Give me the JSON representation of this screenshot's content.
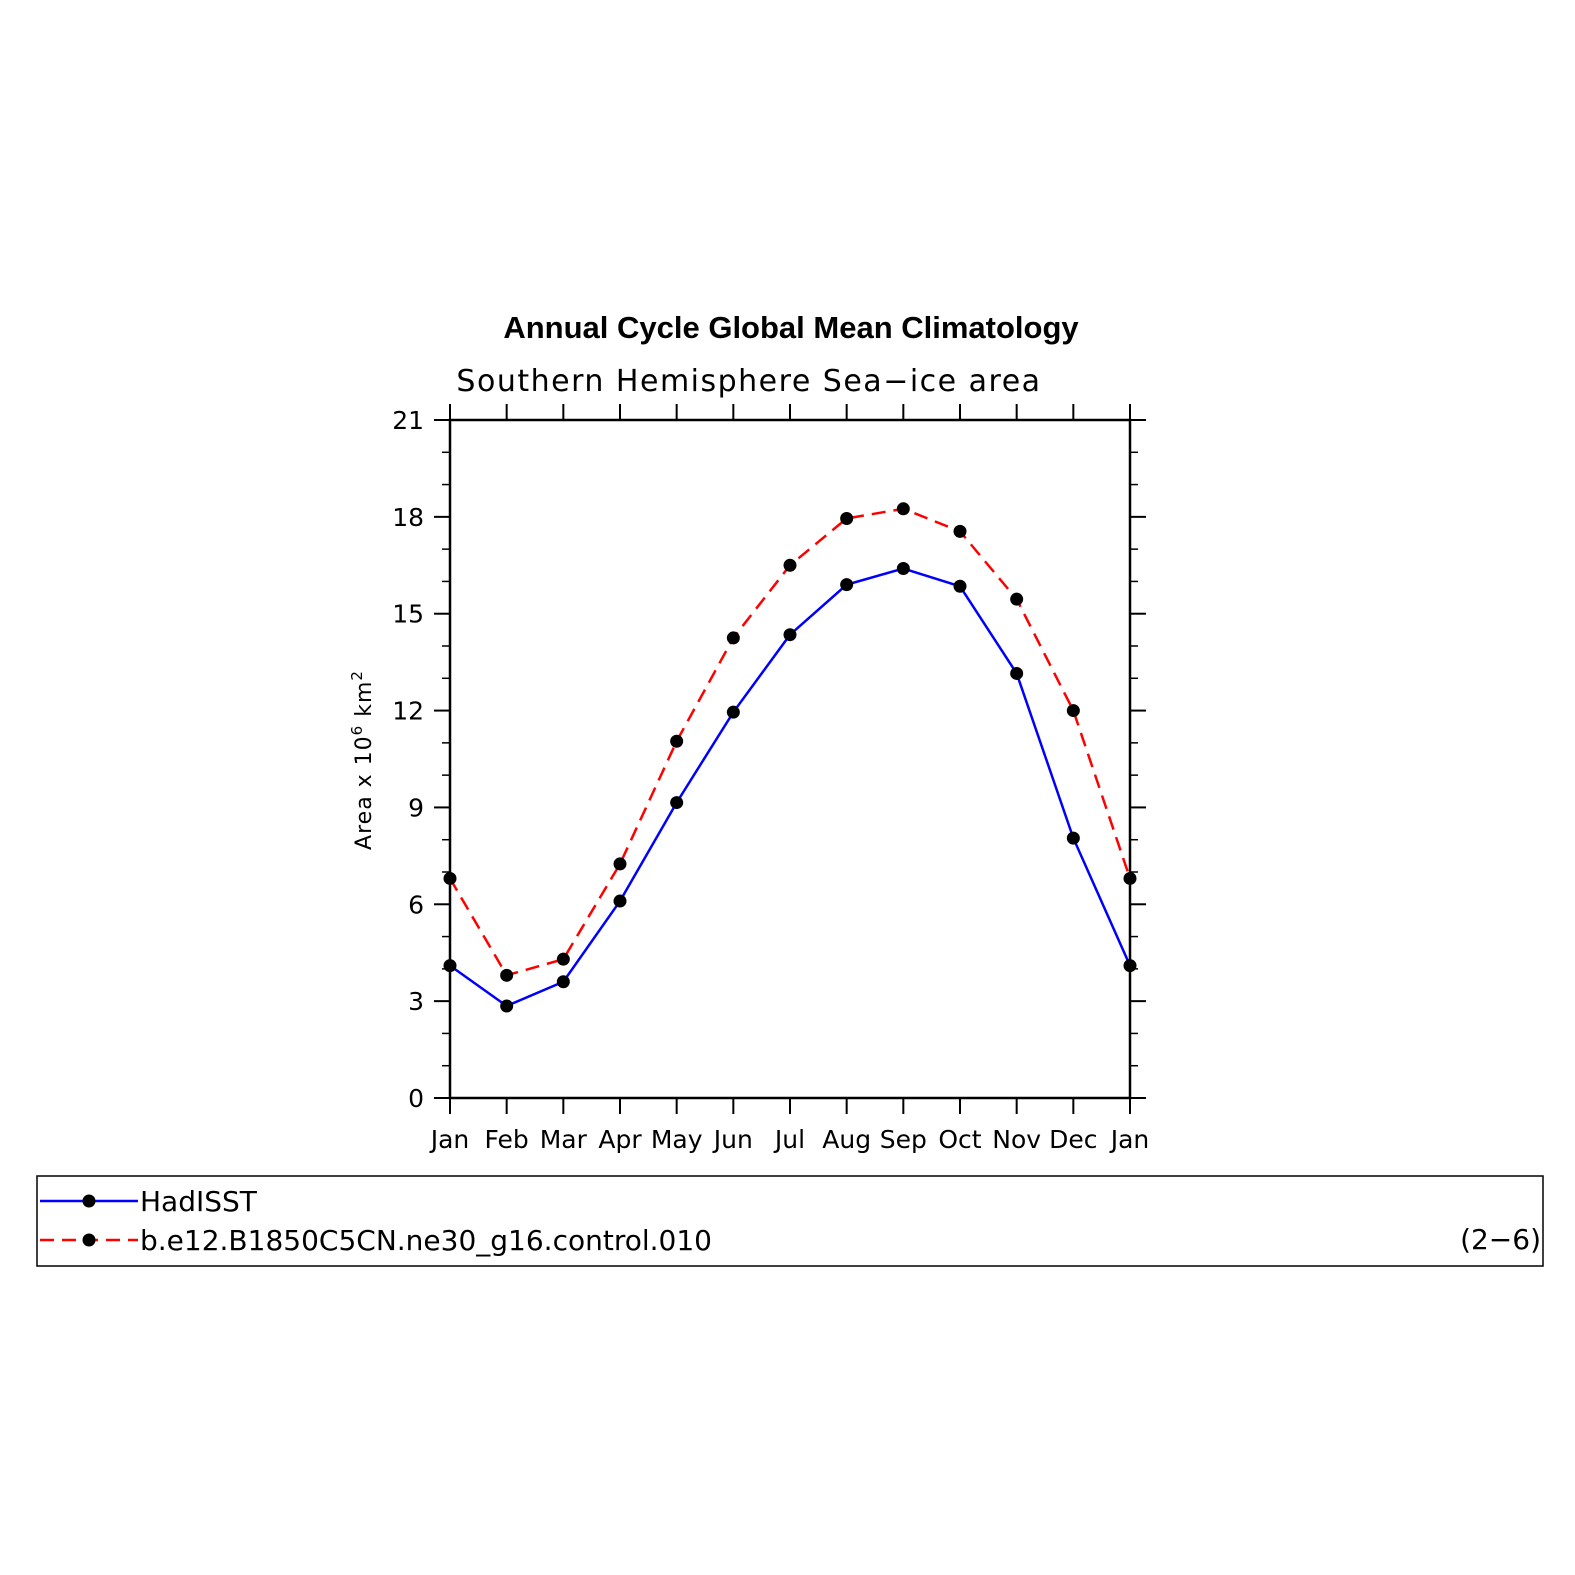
{
  "chart_data": {
    "type": "line",
    "title": "Annual Cycle Global Mean Climatology",
    "subtitle": "Southern Hemisphere Sea−ice area",
    "ylabel_base": "Area x 10",
    "ylabel_sup1": "6",
    "ylabel_mid": " km",
    "ylabel_sup2": "2",
    "xlabel": "",
    "categories": [
      "Jan",
      "Feb",
      "Mar",
      "Apr",
      "May",
      "Jun",
      "Jul",
      "Aug",
      "Sep",
      "Oct",
      "Nov",
      "Dec",
      "Jan"
    ],
    "ylim": [
      0,
      21
    ],
    "yticks": [
      0,
      3,
      6,
      9,
      12,
      15,
      18,
      21
    ],
    "ytick_labels": [
      "0",
      "3",
      "6",
      "9",
      "12",
      "15",
      "18",
      "21"
    ],
    "grid": false,
    "legend_position": "bottom",
    "series": [
      {
        "name": "HadISST",
        "color": "#0000ff",
        "dash": "solid",
        "values": [
          4.1,
          2.85,
          3.6,
          6.1,
          9.15,
          11.95,
          14.35,
          15.9,
          16.4,
          15.85,
          13.15,
          8.05,
          4.1
        ]
      },
      {
        "name": "b.e12.B1850C5CN.ne30_g16.control.010",
        "color": "#ff0000",
        "dash": "dashed",
        "values": [
          6.8,
          3.8,
          4.3,
          7.25,
          11.05,
          14.25,
          16.5,
          17.95,
          18.25,
          17.55,
          15.45,
          12.0,
          6.8
        ]
      }
    ],
    "marker_color": "#000000",
    "panel_label": "(2−6)"
  }
}
